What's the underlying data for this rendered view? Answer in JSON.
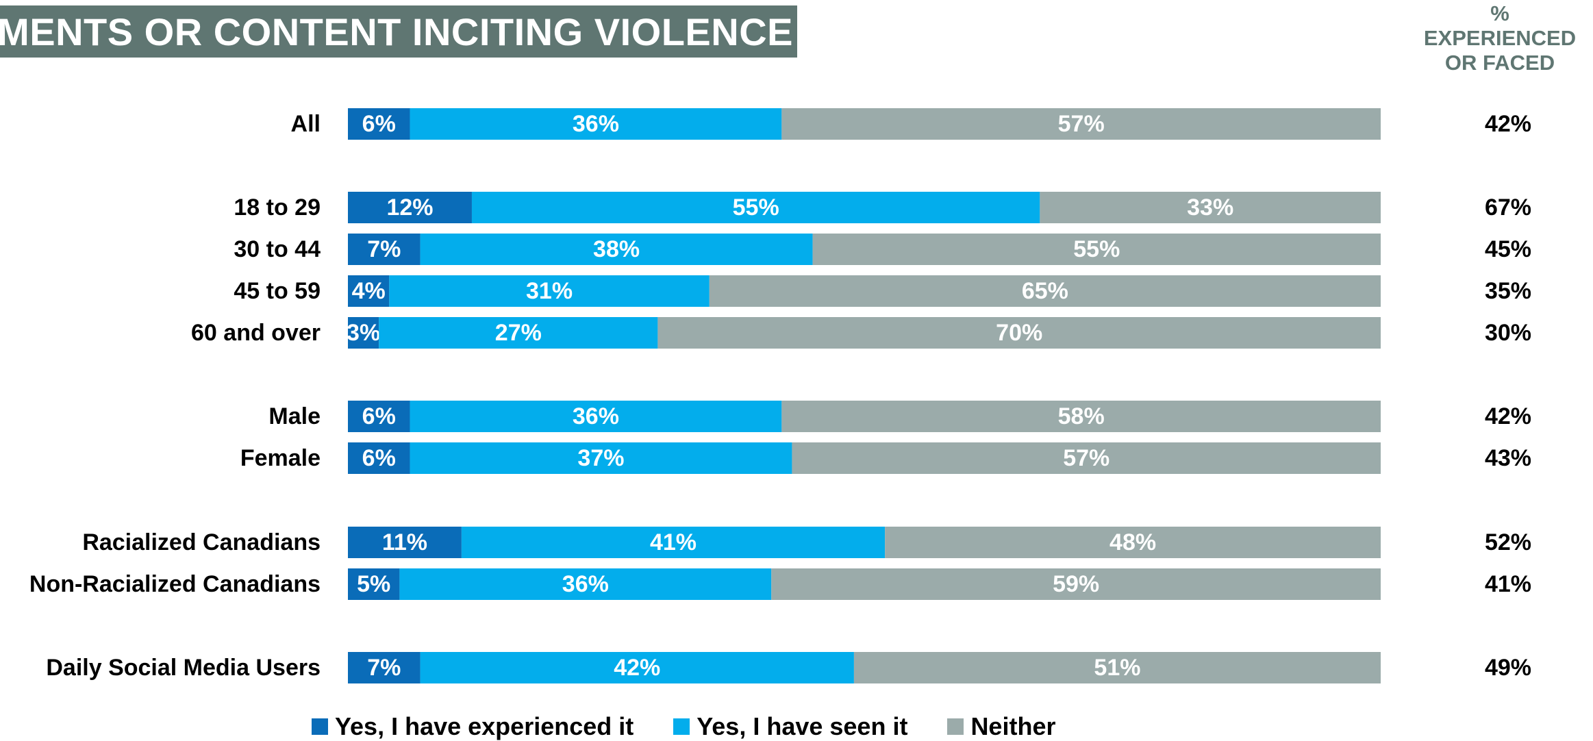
{
  "header": {
    "title": "MMENTS OR CONTENT INCITING VIOLENCE",
    "right_col": [
      "%",
      "EXPERIENCED",
      "OR FACED"
    ]
  },
  "colors": {
    "experienced": "#0a6cb8",
    "seen": "#03adec",
    "neither": "#9babaa"
  },
  "legend": [
    {
      "label": "Yes, I have experienced it",
      "color": "#0a6cb8"
    },
    {
      "label": "Yes, I have seen it",
      "color": "#03adec"
    },
    {
      "label": "Neither",
      "color": "#9babaa"
    }
  ],
  "chart_data": {
    "type": "bar",
    "orientation": "horizontal",
    "stacked": true,
    "xlim": [
      0,
      100
    ],
    "categories": [
      "All",
      "18 to 29",
      "30 to 44",
      "45 to 59",
      "60 and over",
      "Male",
      "Female",
      "Racialized Canadians",
      "Non-Racialized Canadians",
      "Daily Social Media Users"
    ],
    "series": [
      {
        "name": "Yes, I have experienced it",
        "values": [
          6,
          12,
          7,
          4,
          3,
          6,
          6,
          11,
          5,
          7
        ],
        "labels": [
          "6%",
          "12%",
          "7%",
          "4%",
          "3%",
          "6%",
          "6%",
          "11%",
          "5%",
          "7%"
        ]
      },
      {
        "name": "Yes, I have seen it",
        "values": [
          36,
          55,
          38,
          31,
          27,
          36,
          37,
          41,
          36,
          42
        ],
        "labels": [
          "36%",
          "55%",
          "38%",
          "31%",
          "27%",
          "36%",
          "37%",
          "41%",
          "36%",
          "42%"
        ]
      },
      {
        "name": "Neither",
        "values": [
          57,
          33,
          55,
          65,
          70,
          58,
          57,
          48,
          59,
          51
        ],
        "labels": [
          "57%",
          "33%",
          "55%",
          "65%",
          "70%",
          "58%",
          "57%",
          "48%",
          "59%",
          "51%"
        ]
      }
    ],
    "experienced_or_faced": [
      "42%",
      "67%",
      "45%",
      "35%",
      "30%",
      "42%",
      "43%",
      "52%",
      "41%",
      "49%"
    ]
  }
}
